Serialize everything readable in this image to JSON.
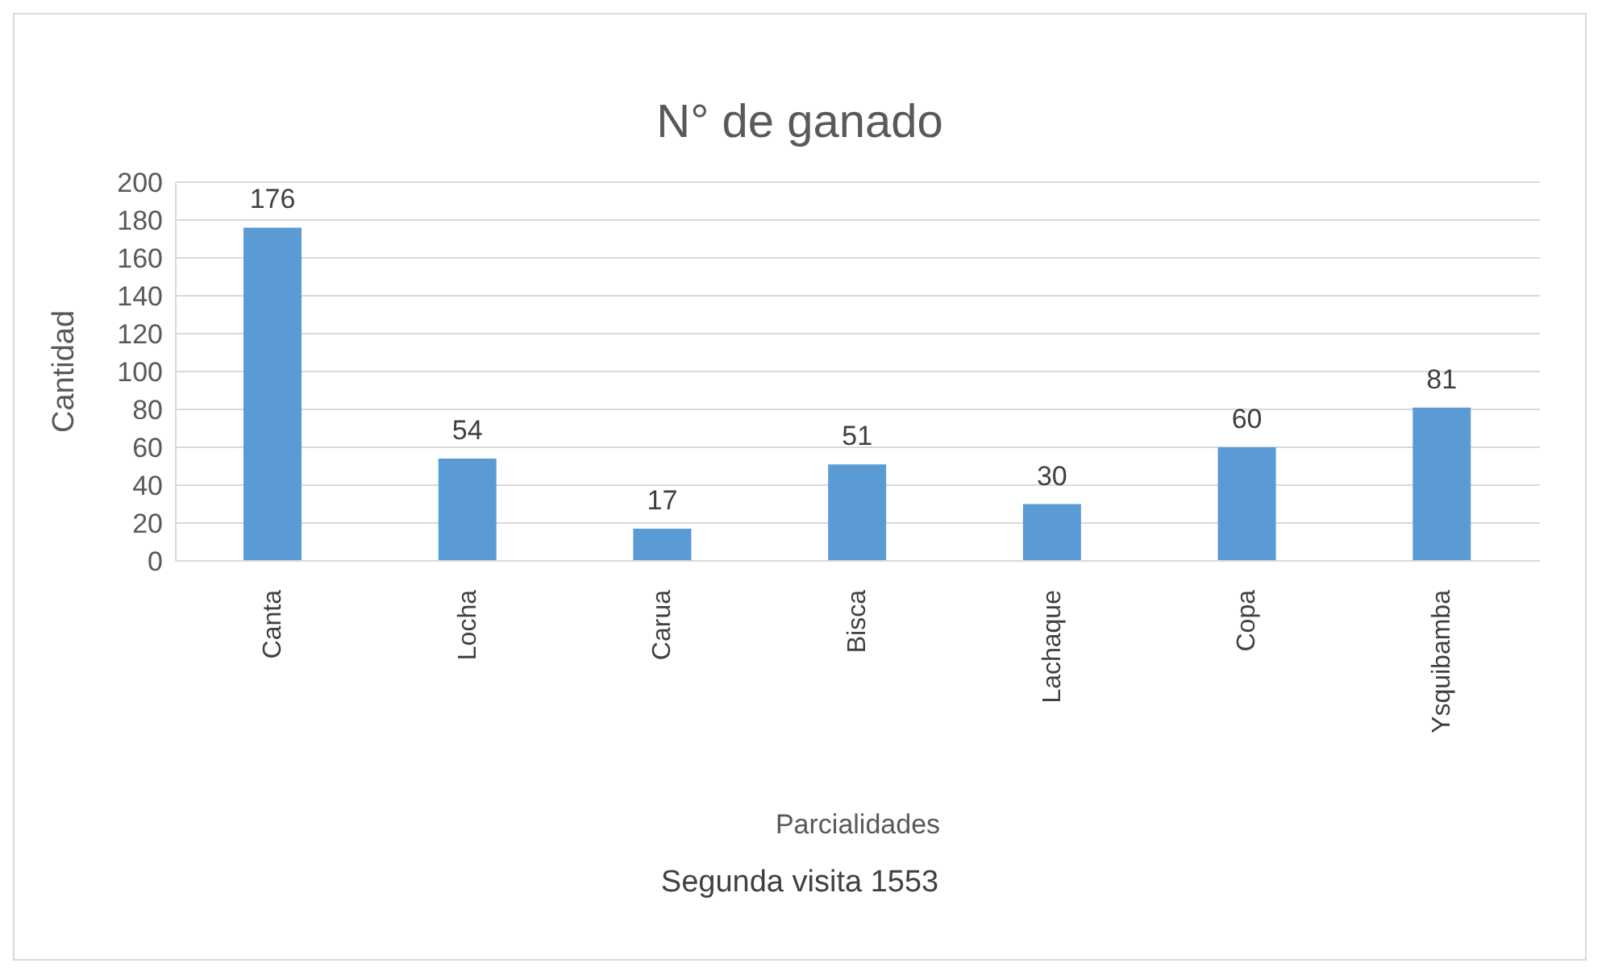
{
  "chart_data": {
    "type": "bar",
    "title": "N° de ganado",
    "xlabel": "Parcialidades",
    "ylabel": "Cantidad",
    "categories": [
      "Canta",
      "Locha",
      "Carua",
      "Bisca",
      "Lachaque",
      "Copa",
      "Ysquibamba"
    ],
    "values": [
      176,
      54,
      17,
      51,
      30,
      60,
      81
    ],
    "color": "#5b9bd5",
    "ylim": [
      0,
      200
    ],
    "yticks": [
      0,
      20,
      40,
      60,
      80,
      100,
      120,
      140,
      160,
      180,
      200
    ],
    "grid": "y",
    "data_labels": true,
    "annotations": [
      "Segunda visita 1553"
    ]
  }
}
